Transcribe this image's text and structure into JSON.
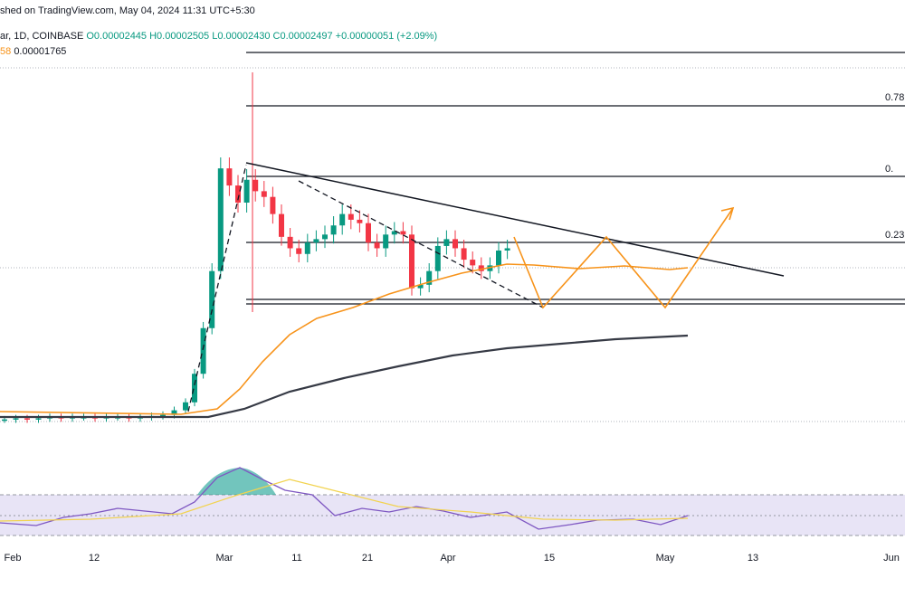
{
  "header": {
    "published_text": "shed on TradingView.com, May 04, 2024 11:31 UTC+5:30",
    "symbol_text": "ar, 1D, COINBASE",
    "open": "O0.00002445",
    "high": "H0.00002505",
    "low": "L0.00002430",
    "close": "C0.00002497",
    "change": "+0.00000051 (+2.09%)",
    "ma_left": "58",
    "ma_right": "0.00001765"
  },
  "fib_labels": [
    "0.78",
    "0.",
    "0.23"
  ],
  "colors": {
    "up": "#089981",
    "down": "#f23645",
    "ma_short": "#f7931a",
    "ma_long": "#363a45",
    "pattern": "#f7931a",
    "rsi": "#7e57c2",
    "rsi_ma": "#f2d34f"
  },
  "chart_data": {
    "type": "candlestick",
    "x_ticks": [
      "Feb",
      "12",
      "Mar",
      "11",
      "21",
      "Apr",
      "15",
      "May",
      "13",
      "Jun"
    ],
    "price_range_approx": [
      9.5e-06,
      4.2e-05
    ],
    "candles_approx_close": [
      1e-05,
      1.01e-05,
      1e-05,
      1.01e-05,
      1.02e-05,
      1.01e-05,
      1.02e-05,
      1.02e-05,
      1.01e-05,
      1.02e-05,
      1.02e-05,
      1.01e-05,
      1.02e-05,
      1.03e-05,
      1.04e-05,
      1.08e-05,
      1.15e-05,
      1.4e-05,
      1.8e-05,
      2.3e-05,
      3.2e-05,
      3.05e-05,
      2.9e-05,
      3.1e-05,
      3e-05,
      2.95e-05,
      2.8e-05,
      2.6e-05,
      2.5e-05,
      2.45e-05,
      2.55e-05,
      2.58e-05,
      2.62e-05,
      2.7e-05,
      2.8e-05,
      2.75e-05,
      2.72e-05,
      2.55e-05,
      2.5e-05,
      2.62e-05,
      2.65e-05,
      2.62e-05,
      2.15e-05,
      2.18e-05,
      2.3e-05,
      2.52e-05,
      2.58e-05,
      2.5e-05,
      2.4e-05,
      2.35e-05,
      2.3e-05,
      2.35e-05,
      2.48e-05,
      2.5e-05
    ],
    "rsi_range": [
      0,
      100
    ],
    "rsi_bands": [
      70,
      30
    ],
    "annotations": [
      "descending trendline",
      "double bottom pattern",
      "projected upside arrow",
      "fib retracement levels"
    ]
  }
}
